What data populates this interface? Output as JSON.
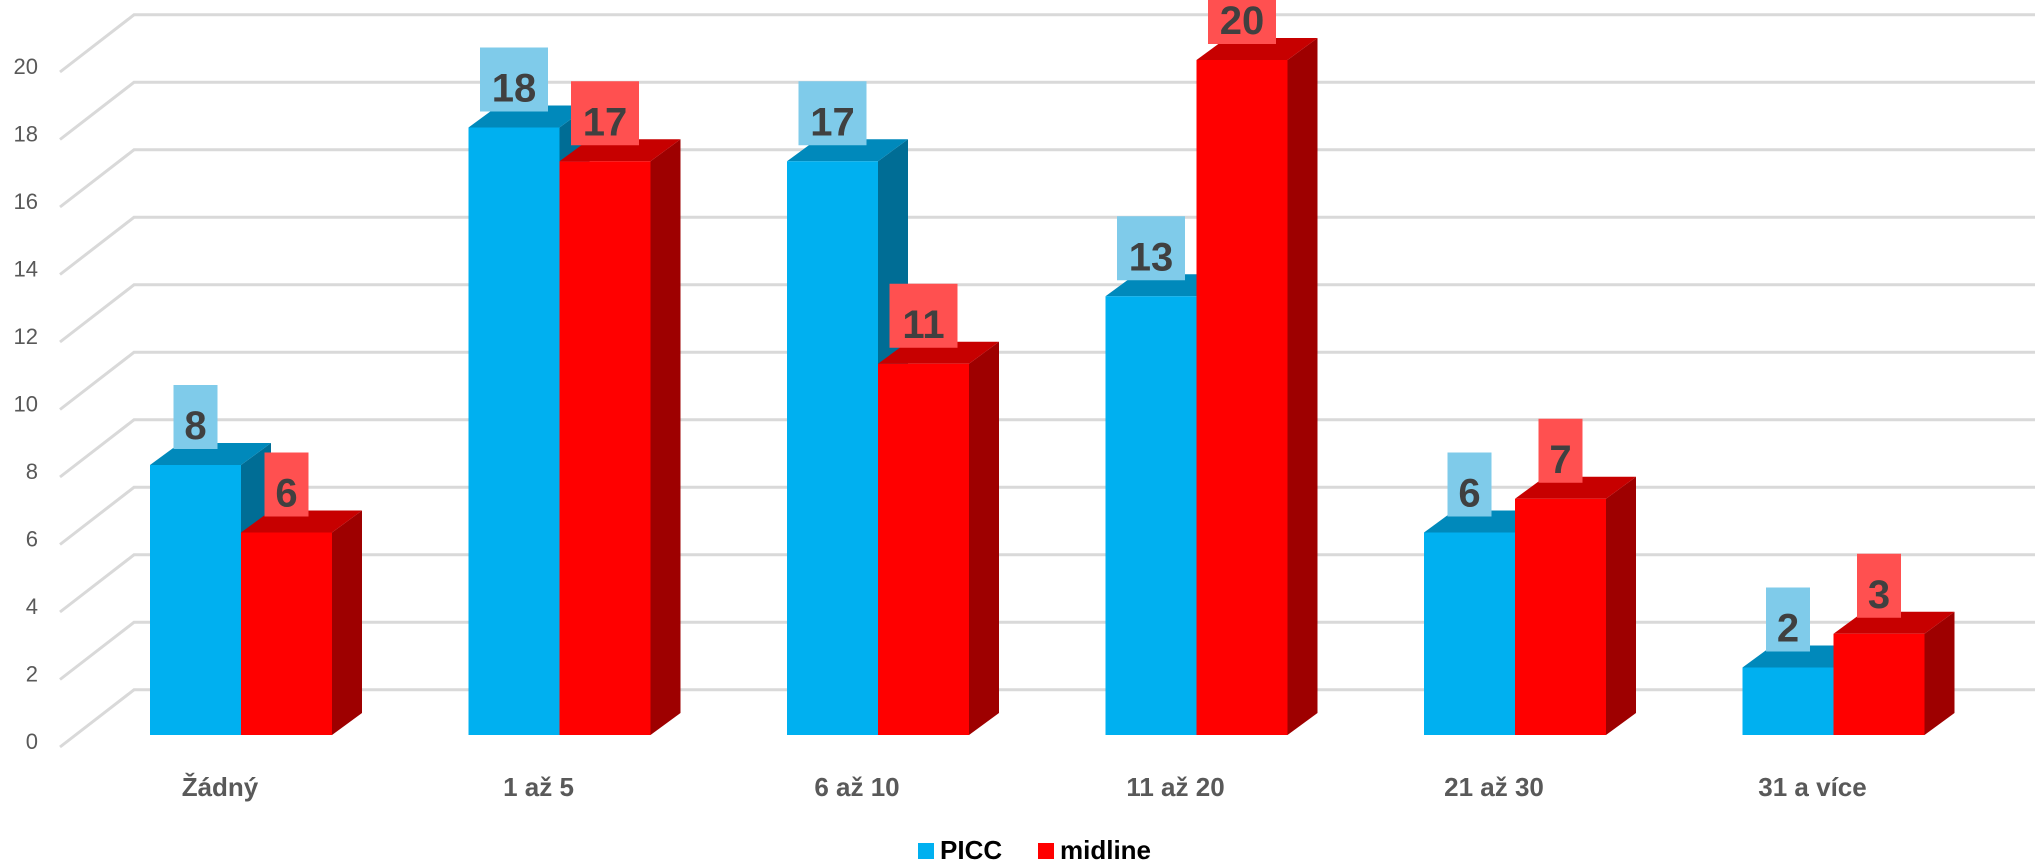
{
  "chart_data": {
    "type": "bar",
    "categories": [
      "Žádný",
      "1 až 5",
      "6 až 10",
      "11 až 20",
      "21 až 30",
      "31 a více"
    ],
    "series": [
      {
        "name": "PICC",
        "values": [
          8,
          18,
          17,
          13,
          6,
          2
        ],
        "color": "#00B0F0",
        "label_bg": "#7FCBEA"
      },
      {
        "name": "midline",
        "values": [
          6,
          17,
          11,
          20,
          7,
          3
        ],
        "color": "#FF0000",
        "label_bg": "#FF5050"
      }
    ],
    "ylim": [
      0,
      20
    ],
    "yticks": [
      0,
      2,
      4,
      6,
      8,
      10,
      12,
      14,
      16,
      18,
      20
    ],
    "grid": true,
    "legend": "bottom-center",
    "style": "3d-clustered-column"
  }
}
